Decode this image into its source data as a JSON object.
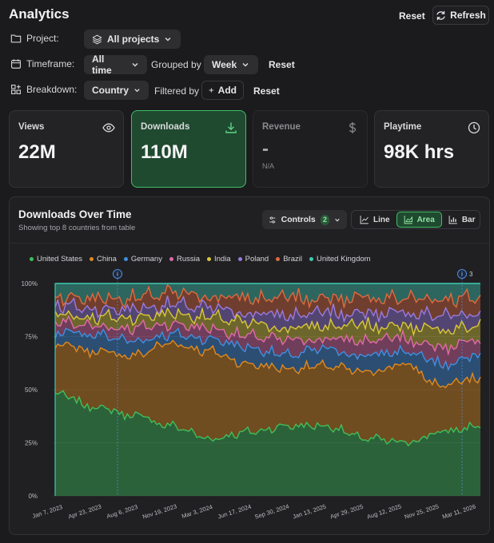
{
  "header": {
    "title": "Analytics",
    "reset_label": "Reset",
    "refresh_label": "Refresh"
  },
  "filters": {
    "project_label": "Project:",
    "project_value": "All projects",
    "timeframe_label": "Timeframe:",
    "timeframe_value": "All time",
    "grouped_by_label": "Grouped by",
    "grouped_by_value": "Week",
    "timeframe_reset": "Reset",
    "breakdown_label": "Breakdown:",
    "breakdown_value": "Country",
    "filtered_by_label": "Filtered by",
    "add_label": "Add",
    "breakdown_reset": "Reset"
  },
  "cards": [
    {
      "label": "Views",
      "value": "22M",
      "icon": "eye-icon"
    },
    {
      "label": "Downloads",
      "value": "110M",
      "icon": "download-icon"
    },
    {
      "label": "Revenue",
      "value": "-",
      "note": "N/A",
      "icon": "dollar-icon"
    },
    {
      "label": "Playtime",
      "value": "98K hrs",
      "icon": "clock-icon"
    }
  ],
  "panel": {
    "title": "Downloads Over Time",
    "subtitle": "Showing top 8 countries from table",
    "controls_label": "Controls",
    "controls_count": "2",
    "view_line": "Line",
    "view_area": "Area",
    "view_bar": "Bar"
  },
  "colors": {
    "United States": "#3fbf5a",
    "China": "#e08a1e",
    "Germany": "#3f8fe0",
    "Russia": "#e06aa8",
    "India": "#d9c83a",
    "Poland": "#9a7ae0",
    "Brazil": "#e06a3f",
    "United Kingdom": "#3fc9b0"
  },
  "chart_data": {
    "type": "area",
    "stacked": "percent",
    "series_names": [
      "United States",
      "China",
      "Germany",
      "Russia",
      "India",
      "Poland",
      "Brazil",
      "United Kingdom"
    ],
    "x_tick_labels": [
      "Jan 7, 2023",
      "Apr 23, 2023",
      "Aug 6, 2023",
      "Nov 19, 2023",
      "Mar 3, 2024",
      "Jun 17, 2024",
      "Sep 30, 2024",
      "Jan 13, 2025",
      "Apr 29, 2025",
      "Aug 12, 2025",
      "Nov 25, 2025",
      "Mar 11, 2026"
    ],
    "y_tick_labels": [
      "0%",
      "25%",
      "50%",
      "75%",
      "100%"
    ],
    "ylim": [
      0,
      100
    ],
    "cumulative_share_anchors": {
      "x": [
        "Jan 7, 2023",
        "Apr 23, 2023",
        "Aug 6, 2023",
        "Nov 19, 2023",
        "Mar 3, 2024",
        "Jun 17, 2024",
        "Sep 30, 2024",
        "Jan 13, 2025",
        "Apr 29, 2025",
        "Aug 12, 2025",
        "Nov 25, 2025",
        "Mar 11, 2026"
      ],
      "United States": [
        48,
        42,
        38,
        33,
        27,
        30,
        33,
        33,
        27,
        25,
        30,
        33
      ],
      "China": [
        72,
        68,
        66,
        72,
        68,
        62,
        60,
        61,
        58,
        62,
        52,
        55
      ],
      "Germany": [
        77,
        76,
        73,
        76,
        74,
        70,
        66,
        69,
        66,
        68,
        62,
        66
      ],
      "Russia": [
        82,
        80,
        79,
        81,
        79,
        75,
        73,
        74,
        73,
        74,
        70,
        73
      ],
      "India": [
        86,
        84,
        84,
        86,
        84,
        81,
        79,
        80,
        80,
        80,
        78,
        80
      ],
      "Poland": [
        90,
        88,
        88,
        90,
        88,
        86,
        85,
        86,
        86,
        86,
        85,
        86
      ],
      "Brazil": [
        94,
        93,
        93,
        95,
        94,
        93,
        93,
        93,
        93,
        93,
        93,
        93
      ],
      "United Kingdom": [
        100,
        100,
        100,
        100,
        100,
        100,
        100,
        100,
        100,
        100,
        100,
        100
      ]
    },
    "annotations": [
      {
        "label": "i",
        "at": "Aug 6, 2023"
      },
      {
        "label": "i",
        "count": "3",
        "at": "Mar 11, 2026"
      }
    ]
  }
}
